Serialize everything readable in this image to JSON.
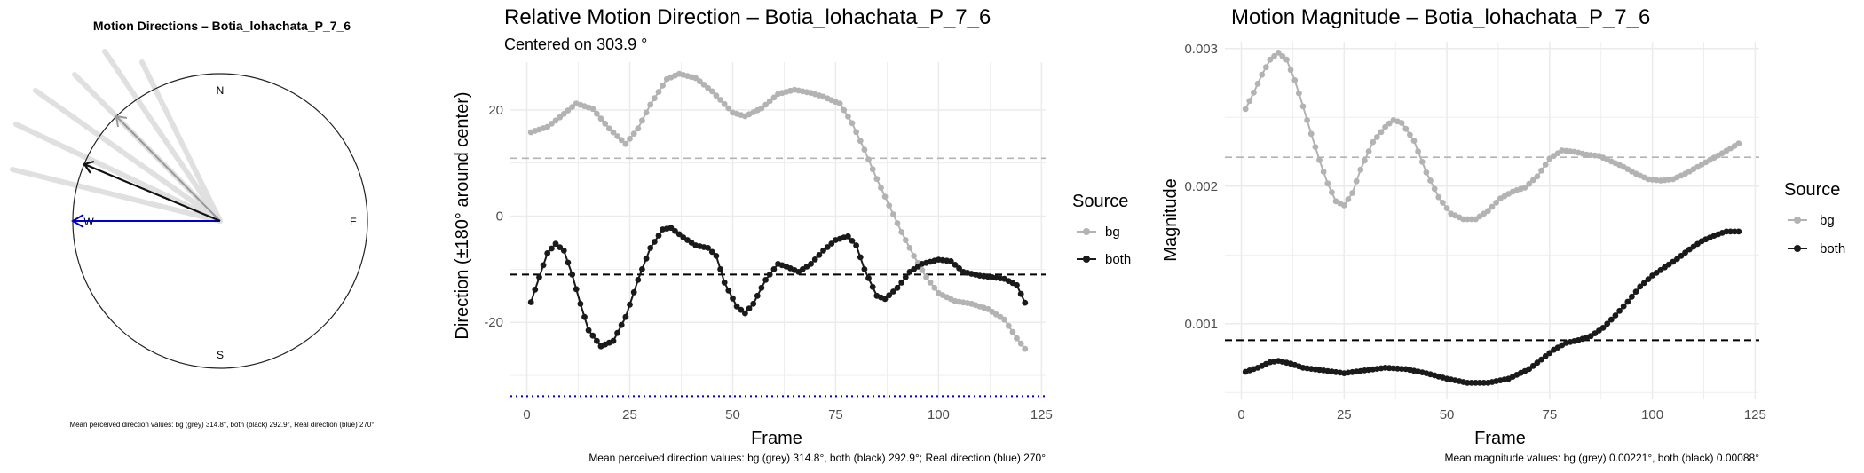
{
  "colors": {
    "bg_series": "#b3b3b3",
    "both_series": "#1a1a1a",
    "real_direction": "#0000cc",
    "bg_arrow": "#999999",
    "bg_trail": "#e0e0e0",
    "grid": "#ebebeb"
  },
  "compass": {
    "title": "Motion Directions – Botia_lohachata_P_7_6",
    "labels": {
      "n": "N",
      "e": "E",
      "s": "S",
      "w": "W"
    },
    "caption": "Mean perceived direction values: bg (grey) 314.8°, both (black) 292.9°, Real direction (blue) 270°"
  },
  "chart_data": [
    {
      "type": "line",
      "title": "Relative Motion Direction – Botia_lohachata_P_7_6",
      "subtitle": "Centered on  303.9 °",
      "xlabel": "Frame",
      "ylabel": "Direction (±180° around center)",
      "xlim": [
        -4,
        126
      ],
      "ylim": [
        -34.5,
        29
      ],
      "x_ticks": [
        0,
        25,
        50,
        75,
        100,
        125
      ],
      "y_ticks": [
        -20,
        0,
        20
      ],
      "grid": true,
      "legend_title": "Source",
      "legend_position": "right",
      "hlines": [
        {
          "series": "bg",
          "y": 10.9,
          "style": "dashed"
        },
        {
          "series": "both",
          "y": -11.0,
          "style": "dashed"
        },
        {
          "series": "real",
          "y": -33.9,
          "style": "dotted"
        }
      ],
      "series": [
        {
          "name": "bg",
          "points": [
            [
              1,
              15.8
            ],
            [
              5,
              16.8
            ],
            [
              8,
              18.6
            ],
            [
              12,
              21.2
            ],
            [
              16,
              20.2
            ],
            [
              20,
              16.5
            ],
            [
              24,
              13.6
            ],
            [
              27,
              16.5
            ],
            [
              30,
              21.0
            ],
            [
              34,
              25.8
            ],
            [
              37,
              26.8
            ],
            [
              41,
              26.0
            ],
            [
              45,
              23.5
            ],
            [
              50,
              19.5
            ],
            [
              53,
              18.8
            ],
            [
              57,
              20.3
            ],
            [
              61,
              23.0
            ],
            [
              65,
              23.8
            ],
            [
              69,
              23.2
            ],
            [
              72,
              22.5
            ],
            [
              76,
              21.2
            ],
            [
              79,
              17.5
            ],
            [
              82,
              12.5
            ],
            [
              85,
              7.0
            ],
            [
              88,
              2.0
            ],
            [
              91,
              -3.0
            ],
            [
              94,
              -7.5
            ],
            [
              97,
              -11.5
            ],
            [
              100,
              -14.5
            ],
            [
              104,
              -16.0
            ],
            [
              108,
              -16.5
            ],
            [
              112,
              -17.5
            ],
            [
              116,
              -19.5
            ],
            [
              119,
              -23.0
            ],
            [
              121,
              -25.0
            ]
          ]
        },
        {
          "name": "both",
          "points": [
            [
              1,
              -16.2
            ],
            [
              3,
              -11.5
            ],
            [
              5,
              -7.0
            ],
            [
              7,
              -5.2
            ],
            [
              9,
              -6.5
            ],
            [
              11,
              -11.0
            ],
            [
              13,
              -16.5
            ],
            [
              15,
              -21.5
            ],
            [
              18,
              -24.5
            ],
            [
              21,
              -23.5
            ],
            [
              24,
              -19.0
            ],
            [
              27,
              -12.0
            ],
            [
              30,
              -6.0
            ],
            [
              33,
              -2.5
            ],
            [
              35,
              -2.2
            ],
            [
              38,
              -4.0
            ],
            [
              41,
              -5.5
            ],
            [
              44,
              -6.0
            ],
            [
              46,
              -7.5
            ],
            [
              48,
              -12.5
            ],
            [
              51,
              -17.0
            ],
            [
              53,
              -18.3
            ],
            [
              55,
              -16.5
            ],
            [
              58,
              -12.0
            ],
            [
              61,
              -9.0
            ],
            [
              63,
              -9.5
            ],
            [
              66,
              -10.5
            ],
            [
              69,
              -9.0
            ],
            [
              72,
              -6.5
            ],
            [
              75,
              -4.5
            ],
            [
              78,
              -3.8
            ],
            [
              80,
              -5.5
            ],
            [
              82,
              -10.0
            ],
            [
              85,
              -15.0
            ],
            [
              87,
              -15.6
            ],
            [
              90,
              -13.5
            ],
            [
              93,
              -10.5
            ],
            [
              96,
              -9.0
            ],
            [
              100,
              -8.2
            ],
            [
              103,
              -8.5
            ],
            [
              106,
              -10.5
            ],
            [
              110,
              -11.2
            ],
            [
              113,
              -11.5
            ],
            [
              116,
              -11.8
            ],
            [
              119,
              -13.0
            ],
            [
              121,
              -16.3
            ]
          ]
        }
      ],
      "caption": "Mean perceived direction values: bg (grey) 314.8°, both (black) 292.9°; Real direction (blue) 270°"
    },
    {
      "type": "line",
      "title": "Motion Magnitude – Botia_lohachata_P_7_6",
      "xlabel": "Frame",
      "ylabel": "Magnitude",
      "xlim": [
        -4,
        126
      ],
      "ylim": [
        0.00045,
        0.00305
      ],
      "x_ticks": [
        0,
        25,
        50,
        75,
        100,
        125
      ],
      "y_ticks": [
        0.001,
        0.002,
        0.003
      ],
      "y_tick_labels": [
        "0.001",
        "0.002",
        "0.003"
      ],
      "grid": true,
      "legend_title": "Source",
      "legend_position": "right",
      "hlines": [
        {
          "series": "bg",
          "y": 0.00221,
          "style": "dashed"
        },
        {
          "series": "both",
          "y": 0.00088,
          "style": "dashed"
        }
      ],
      "series": [
        {
          "name": "bg",
          "points": [
            [
              1,
              0.00256
            ],
            [
              3,
              0.00268
            ],
            [
              5,
              0.00281
            ],
            [
              7,
              0.00292
            ],
            [
              9,
              0.00297
            ],
            [
              11,
              0.00292
            ],
            [
              13,
              0.00277
            ],
            [
              15,
              0.00258
            ],
            [
              17,
              0.00238
            ],
            [
              19,
              0.00219
            ],
            [
              21,
              0.00202
            ],
            [
              23,
              0.00189
            ],
            [
              25,
              0.00186
            ],
            [
              27,
              0.00195
            ],
            [
              29,
              0.00212
            ],
            [
              32,
              0.00232
            ],
            [
              35,
              0.00243
            ],
            [
              37,
              0.00248
            ],
            [
              39,
              0.00246
            ],
            [
              42,
              0.00233
            ],
            [
              45,
              0.0021
            ],
            [
              48,
              0.00192
            ],
            [
              51,
              0.0018
            ],
            [
              54,
              0.00176
            ],
            [
              57,
              0.00176
            ],
            [
              60,
              0.00182
            ],
            [
              63,
              0.00191
            ],
            [
              66,
              0.00196
            ],
            [
              69,
              0.00199
            ],
            [
              72,
              0.00207
            ],
            [
              75,
              0.0022
            ],
            [
              78,
              0.00226
            ],
            [
              81,
              0.00225
            ],
            [
              84,
              0.00223
            ],
            [
              87,
              0.00222
            ],
            [
              90,
              0.00218
            ],
            [
              93,
              0.00214
            ],
            [
              96,
              0.00209
            ],
            [
              99,
              0.00205
            ],
            [
              102,
              0.00204
            ],
            [
              105,
              0.00205
            ],
            [
              108,
              0.00209
            ],
            [
              111,
              0.00214
            ],
            [
              114,
              0.00219
            ],
            [
              117,
              0.00224
            ],
            [
              121,
              0.00231
            ]
          ]
        },
        {
          "name": "both",
          "points": [
            [
              1,
              0.00065
            ],
            [
              4,
              0.00068
            ],
            [
              7,
              0.00072
            ],
            [
              9,
              0.00073
            ],
            [
              12,
              0.00071
            ],
            [
              15,
              0.00068
            ],
            [
              20,
              0.00066
            ],
            [
              25,
              0.00064
            ],
            [
              30,
              0.00066
            ],
            [
              35,
              0.00068
            ],
            [
              40,
              0.00067
            ],
            [
              45,
              0.00064
            ],
            [
              50,
              0.0006
            ],
            [
              55,
              0.00057
            ],
            [
              60,
              0.00057
            ],
            [
              65,
              0.0006
            ],
            [
              70,
              0.00067
            ],
            [
              73,
              0.00074
            ],
            [
              76,
              0.00081
            ],
            [
              79,
              0.00086
            ],
            [
              82,
              0.00088
            ],
            [
              85,
              0.00091
            ],
            [
              88,
              0.00097
            ],
            [
              91,
              0.00106
            ],
            [
              94,
              0.00116
            ],
            [
              97,
              0.00127
            ],
            [
              100,
              0.00135
            ],
            [
              103,
              0.00141
            ],
            [
              106,
              0.00147
            ],
            [
              109,
              0.00154
            ],
            [
              112,
              0.0016
            ],
            [
              115,
              0.00164
            ],
            [
              118,
              0.00167
            ],
            [
              121,
              0.00167
            ]
          ]
        }
      ],
      "caption": "Mean magnitude values: bg (grey) 0.00221°, both (black) 0.00088°"
    }
  ]
}
